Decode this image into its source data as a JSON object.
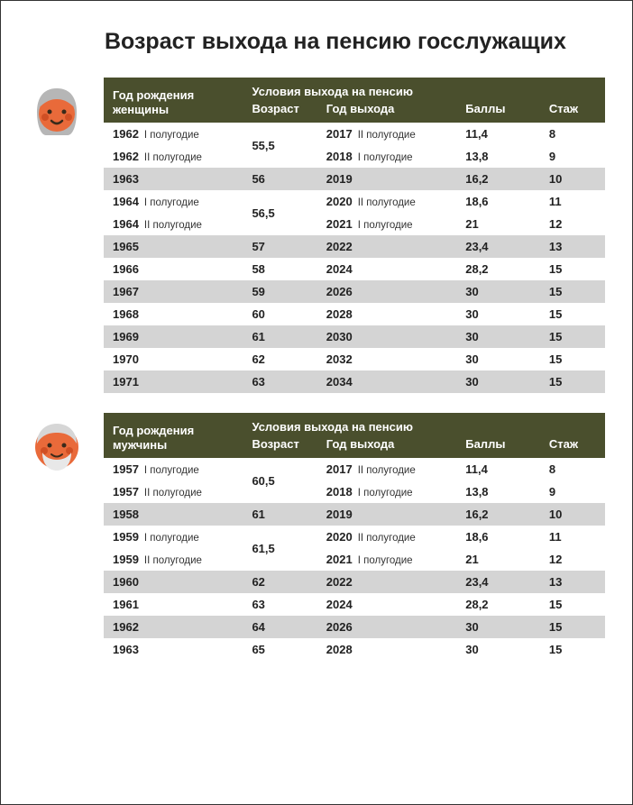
{
  "title": "Возраст выхода на пенсию госслужащих",
  "colors": {
    "header_bg": "#4a4f2d",
    "header_fg": "#ffffff",
    "row_grey": "#d4d4d4",
    "row_white": "#ffffff",
    "text": "#222222",
    "woman_skin": "#e96a3a",
    "woman_hair": "#b6b6b6",
    "woman_cheek": "#d04f24",
    "man_skin": "#e96a3a",
    "man_hair": "#d6d6d6",
    "man_cheek": "#d04f24"
  },
  "headers": {
    "conditions": "Условия выхода на пенсию",
    "age": "Возраст",
    "exit_year": "Год выхода",
    "points": "Баллы",
    "stage": "Стаж"
  },
  "women": {
    "birth_label_l1": "Год рождения",
    "birth_label_l2": "женщины",
    "rows": [
      {
        "by": "1962",
        "bhalf": "I полугодие",
        "age": "55,5",
        "age_rowspan": 2,
        "ey": "2017",
        "ehalf": "II полугодие",
        "pts": "11,4",
        "st": "8",
        "shade": "white"
      },
      {
        "by": "1962",
        "bhalf": "II полугодие",
        "age": "",
        "age_rowspan": 0,
        "ey": "2018",
        "ehalf": "I полугодие",
        "pts": "13,8",
        "st": "9",
        "shade": "white"
      },
      {
        "by": "1963",
        "bhalf": "",
        "age": "56",
        "age_rowspan": 1,
        "ey": "2019",
        "ehalf": "",
        "pts": "16,2",
        "st": "10",
        "shade": "grey"
      },
      {
        "by": "1964",
        "bhalf": "I полугодие",
        "age": "56,5",
        "age_rowspan": 2,
        "ey": "2020",
        "ehalf": "II полугодие",
        "pts": "18,6",
        "st": "11",
        "shade": "white"
      },
      {
        "by": "1964",
        "bhalf": "II полугодие",
        "age": "",
        "age_rowspan": 0,
        "ey": "2021",
        "ehalf": "I полугодие",
        "pts": "21",
        "st": "12",
        "shade": "white"
      },
      {
        "by": "1965",
        "bhalf": "",
        "age": "57",
        "age_rowspan": 1,
        "ey": "2022",
        "ehalf": "",
        "pts": "23,4",
        "st": "13",
        "shade": "grey"
      },
      {
        "by": "1966",
        "bhalf": "",
        "age": "58",
        "age_rowspan": 1,
        "ey": "2024",
        "ehalf": "",
        "pts": "28,2",
        "st": "15",
        "shade": "white"
      },
      {
        "by": "1967",
        "bhalf": "",
        "age": "59",
        "age_rowspan": 1,
        "ey": "2026",
        "ehalf": "",
        "pts": "30",
        "st": "15",
        "shade": "grey"
      },
      {
        "by": "1968",
        "bhalf": "",
        "age": "60",
        "age_rowspan": 1,
        "ey": "2028",
        "ehalf": "",
        "pts": "30",
        "st": "15",
        "shade": "white"
      },
      {
        "by": "1969",
        "bhalf": "",
        "age": "61",
        "age_rowspan": 1,
        "ey": "2030",
        "ehalf": "",
        "pts": "30",
        "st": "15",
        "shade": "grey"
      },
      {
        "by": "1970",
        "bhalf": "",
        "age": "62",
        "age_rowspan": 1,
        "ey": "2032",
        "ehalf": "",
        "pts": "30",
        "st": "15",
        "shade": "white"
      },
      {
        "by": "1971",
        "bhalf": "",
        "age": "63",
        "age_rowspan": 1,
        "ey": "2034",
        "ehalf": "",
        "pts": "30",
        "st": "15",
        "shade": "grey"
      }
    ]
  },
  "men": {
    "birth_label_l1": "Год рождения",
    "birth_label_l2": "мужчины",
    "rows": [
      {
        "by": "1957",
        "bhalf": "I полугодие",
        "age": "60,5",
        "age_rowspan": 2,
        "ey": "2017",
        "ehalf": "II полугодие",
        "pts": "11,4",
        "st": "8",
        "shade": "white"
      },
      {
        "by": "1957",
        "bhalf": "II полугодие",
        "age": "",
        "age_rowspan": 0,
        "ey": "2018",
        "ehalf": "I полугодие",
        "pts": "13,8",
        "st": "9",
        "shade": "white"
      },
      {
        "by": "1958",
        "bhalf": "",
        "age": "61",
        "age_rowspan": 1,
        "ey": "2019",
        "ehalf": "",
        "pts": "16,2",
        "st": "10",
        "shade": "grey"
      },
      {
        "by": "1959",
        "bhalf": "I полугодие",
        "age": "61,5",
        "age_rowspan": 2,
        "ey": "2020",
        "ehalf": "II полугодие",
        "pts": "18,6",
        "st": "11",
        "shade": "white"
      },
      {
        "by": "1959",
        "bhalf": "II полугодие",
        "age": "",
        "age_rowspan": 0,
        "ey": "2021",
        "ehalf": "I полугодие",
        "pts": "21",
        "st": "12",
        "shade": "white"
      },
      {
        "by": "1960",
        "bhalf": "",
        "age": "62",
        "age_rowspan": 1,
        "ey": "2022",
        "ehalf": "",
        "pts": "23,4",
        "st": "13",
        "shade": "grey"
      },
      {
        "by": "1961",
        "bhalf": "",
        "age": "63",
        "age_rowspan": 1,
        "ey": "2024",
        "ehalf": "",
        "pts": "28,2",
        "st": "15",
        "shade": "white"
      },
      {
        "by": "1962",
        "bhalf": "",
        "age": "64",
        "age_rowspan": 1,
        "ey": "2026",
        "ehalf": "",
        "pts": "30",
        "st": "15",
        "shade": "grey"
      },
      {
        "by": "1963",
        "bhalf": "",
        "age": "65",
        "age_rowspan": 1,
        "ey": "2028",
        "ehalf": "",
        "pts": "30",
        "st": "15",
        "shade": "white"
      }
    ]
  }
}
